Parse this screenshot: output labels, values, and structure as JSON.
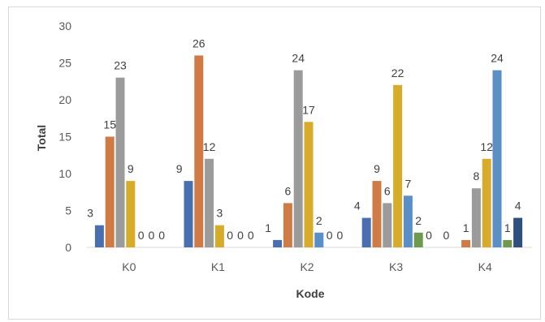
{
  "chart_data": {
    "type": "bar",
    "title": "",
    "xlabel": "Kode",
    "ylabel": "Total",
    "ylim": [
      0,
      30
    ],
    "yticks": [
      0,
      5,
      10,
      15,
      20,
      25,
      30
    ],
    "grid": false,
    "legend": "none",
    "categories": [
      "K0",
      "K1",
      "K2",
      "K3",
      "K4"
    ],
    "series": [
      {
        "color": "#4a6fb0",
        "values": [
          3,
          9,
          1,
          4,
          0
        ]
      },
      {
        "color": "#d07a45",
        "values": [
          15,
          26,
          6,
          9,
          1
        ]
      },
      {
        "color": "#9b9b9b",
        "values": [
          23,
          12,
          24,
          6,
          8
        ]
      },
      {
        "color": "#d6ac2a",
        "values": [
          9,
          3,
          17,
          22,
          12
        ]
      },
      {
        "color": "#5b8fc7",
        "values": [
          0,
          0,
          2,
          7,
          24
        ]
      },
      {
        "color": "#6f9a4e",
        "values": [
          0,
          0,
          0,
          2,
          1
        ]
      },
      {
        "color": "#2f4f7f",
        "values": [
          0,
          0,
          0,
          0,
          4
        ]
      }
    ]
  }
}
